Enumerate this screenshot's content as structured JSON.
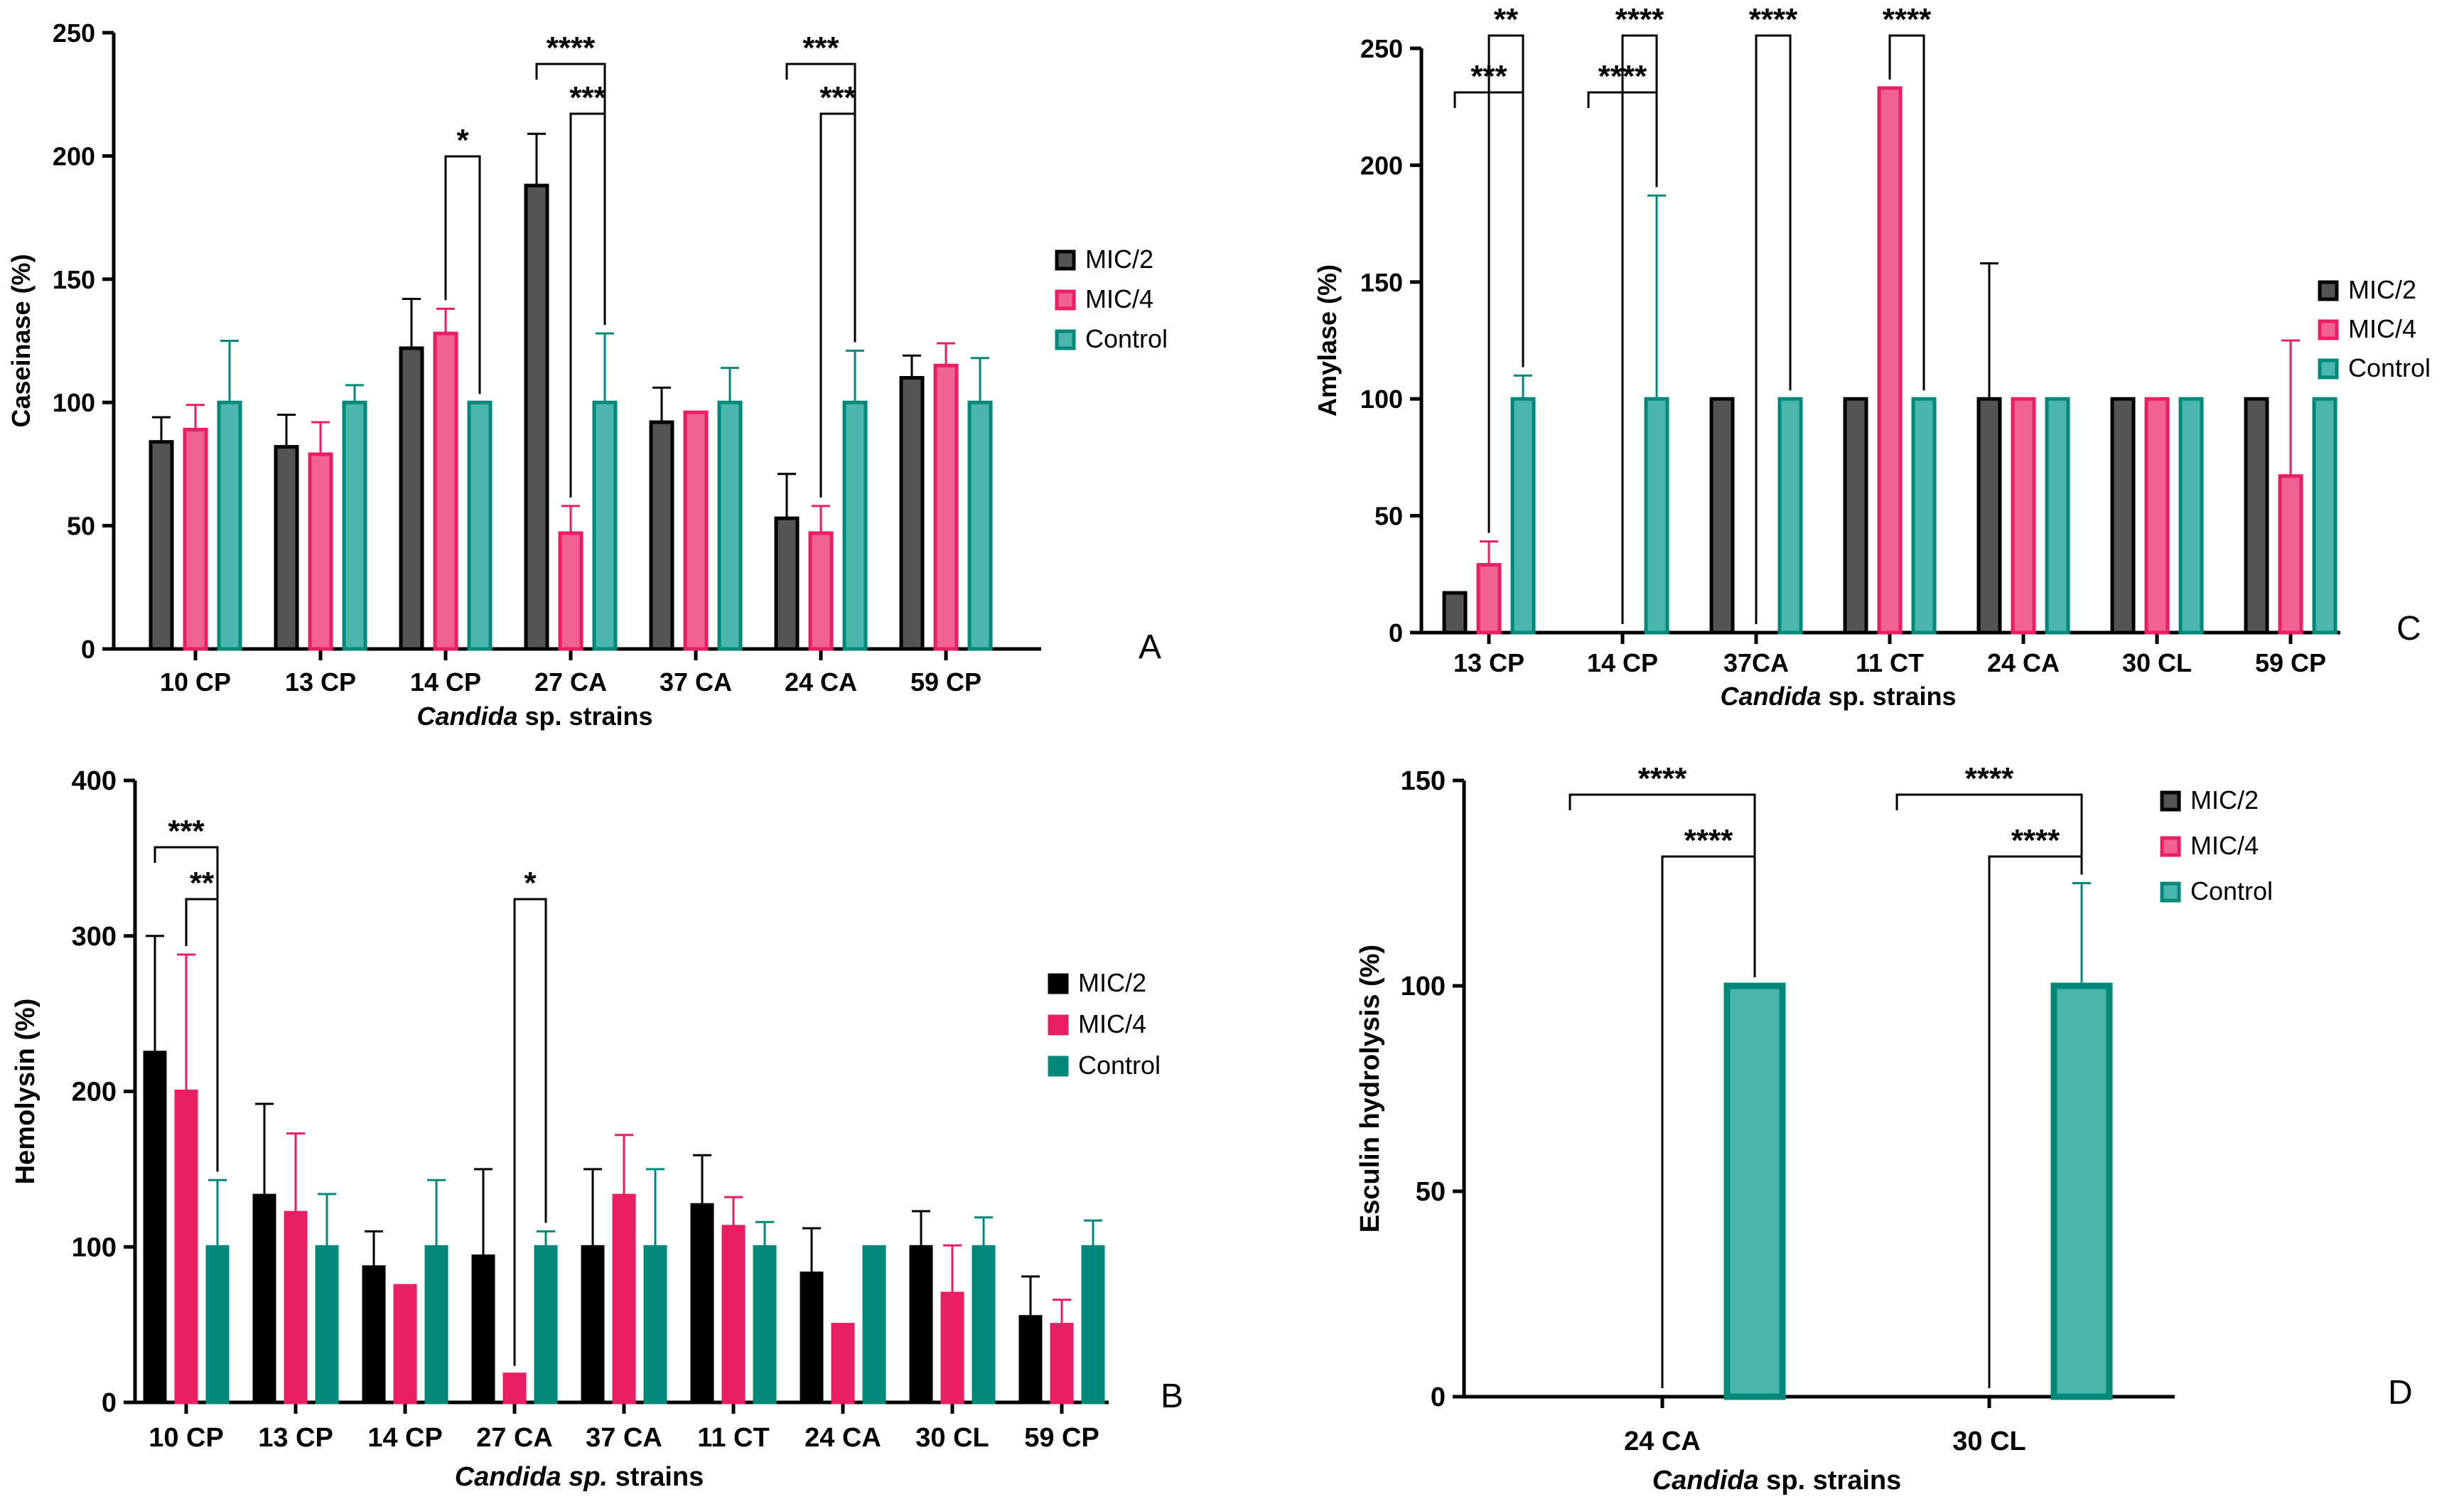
{
  "colors": {
    "mic2": "#545454",
    "mic2_dark": "#000000",
    "mic4": "#f06292",
    "mic4_dark": "#e91e63",
    "control": "#4db6ac",
    "control_dark": "#00897b",
    "axis": "#000000"
  },
  "chart_data": [
    {
      "id": "A",
      "panel_label": "A",
      "type": "bar",
      "xlabel_italic": "Candida",
      "xlabel_rest": " sp. strains",
      "ylabel": "Caseinase (%)",
      "ylim": [
        0,
        250
      ],
      "yticks": [
        0,
        50,
        100,
        150,
        200,
        250
      ],
      "categories": [
        "10 CP",
        "13 CP",
        "14 CP",
        "27 CA",
        "37 CA",
        "24 CA",
        "59 CP"
      ],
      "series": [
        {
          "name": "MIC/2",
          "values": [
            84,
            82,
            122,
            188,
            92,
            53,
            110
          ],
          "errors": [
            10,
            13,
            20,
            21,
            14,
            18,
            9
          ]
        },
        {
          "name": "MIC/4",
          "values": [
            89,
            79,
            128,
            47,
            96,
            47,
            115
          ],
          "errors": [
            10,
            13,
            10,
            11,
            0,
            11,
            9
          ]
        },
        {
          "name": "Control",
          "values": [
            100,
            100,
            100,
            100,
            100,
            100,
            100
          ],
          "errors": [
            25,
            7,
            0,
            28,
            14,
            21,
            18
          ]
        }
      ],
      "legend": [
        "MIC/2",
        "MIC/4",
        "Control"
      ],
      "legend_position": "right",
      "significance": [
        {
          "category": 2,
          "from": "MIC/4",
          "to": "Control",
          "label": "*",
          "level": 1
        },
        {
          "category": 3,
          "from": "MIC/2",
          "to": "Control",
          "label": "****",
          "level": 2
        },
        {
          "category": 3,
          "from": "MIC/4",
          "to": "Control",
          "label": "***",
          "level": 1
        },
        {
          "category": 5,
          "from": "MIC/2",
          "to": "Control",
          "label": "***",
          "level": 2
        },
        {
          "category": 5,
          "from": "MIC/4",
          "to": "Control",
          "label": "***",
          "level": 1
        }
      ]
    },
    {
      "id": "C",
      "panel_label": "C",
      "type": "bar",
      "xlabel_italic": "Candida",
      "xlabel_rest": " sp. strains",
      "ylabel": "Amylase (%)",
      "ylim": [
        0,
        250
      ],
      "yticks": [
        0,
        50,
        100,
        150,
        200,
        250
      ],
      "categories": [
        "13 CP",
        "14 CP",
        "37CA",
        "11 CT",
        "24 CA",
        "30 CL",
        "59 CP"
      ],
      "series": [
        {
          "name": "MIC/2",
          "values": [
            17,
            0,
            100,
            100,
            100,
            100,
            100
          ],
          "errors": [
            0,
            0,
            0,
            0,
            58,
            0,
            0
          ]
        },
        {
          "name": "MIC/4",
          "values": [
            29,
            0,
            0,
            233,
            100,
            100,
            67
          ],
          "errors": [
            10,
            0,
            0,
            0,
            0,
            0,
            58
          ]
        },
        {
          "name": "Control",
          "values": [
            100,
            100,
            100,
            100,
            100,
            100,
            100
          ],
          "errors": [
            10,
            87,
            0,
            0,
            0,
            0,
            0
          ]
        }
      ],
      "legend": [
        "MIC/2",
        "MIC/4",
        "Control"
      ],
      "legend_position": "right",
      "significance": [
        {
          "category": 0,
          "from": "MIC/2",
          "to": "Control",
          "label": "***",
          "level": 2
        },
        {
          "category": 0,
          "from": "MIC/4",
          "to": "Control",
          "label": "**",
          "level": 1
        },
        {
          "category": 1,
          "from": "MIC/2",
          "to": "Control",
          "label": "****",
          "level": 2
        },
        {
          "category": 1,
          "from": "MIC/4",
          "to": "Control",
          "label": "****",
          "level": 1
        },
        {
          "category": 2,
          "from": "MIC/4",
          "to": "Control",
          "label": "****",
          "level": 1
        },
        {
          "category": 3,
          "from": "MIC/4",
          "to": "Control",
          "label": "****",
          "level": 1
        }
      ]
    },
    {
      "id": "B",
      "panel_label": "B",
      "type": "bar",
      "xlabel_italic": "Candida sp.",
      "xlabel_rest": " strains",
      "ylabel": "Hemolysin (%)",
      "ylim": [
        0,
        400
      ],
      "yticks": [
        0,
        100,
        200,
        300,
        400
      ],
      "categories": [
        "10 CP",
        "13 CP",
        "14 CP",
        "27 CA",
        "37 CA",
        "11 CT",
        "24 CA",
        "30 CL",
        "59 CP"
      ],
      "series": [
        {
          "name": "MIC/2",
          "values": [
            225,
            133,
            87,
            94,
            100,
            127,
            83,
            100,
            55
          ],
          "errors": [
            75,
            59,
            23,
            56,
            50,
            32,
            29,
            23,
            26
          ]
        },
        {
          "name": "MIC/4",
          "values": [
            200,
            122,
            75,
            18,
            133,
            113,
            50,
            70,
            50
          ],
          "errors": [
            88,
            51,
            0,
            0,
            39,
            19,
            0,
            31,
            16
          ]
        },
        {
          "name": "Control",
          "values": [
            100,
            100,
            100,
            100,
            100,
            100,
            100,
            100,
            100
          ],
          "errors": [
            43,
            34,
            43,
            10,
            50,
            16,
            0,
            19,
            17
          ]
        }
      ],
      "legend": [
        "MIC/2",
        "MIC/4",
        "Control"
      ],
      "legend_position": "right",
      "significance": [
        {
          "category": 0,
          "from": "MIC/2",
          "to": "Control",
          "label": "***",
          "level": 2
        },
        {
          "category": 0,
          "from": "MIC/4",
          "to": "Control",
          "label": "**",
          "level": 1
        },
        {
          "category": 3,
          "from": "MIC/4",
          "to": "Control",
          "label": "*",
          "level": 1
        }
      ]
    },
    {
      "id": "D",
      "panel_label": "D",
      "type": "bar",
      "xlabel_italic": "Candida",
      "xlabel_rest": " sp. strains",
      "ylabel": "Esculin hydrolysis (%)",
      "ylim": [
        0,
        150
      ],
      "yticks": [
        0,
        50,
        100,
        150
      ],
      "categories": [
        "24 CA",
        "30 CL"
      ],
      "series": [
        {
          "name": "MIC/2",
          "values": [
            0,
            0
          ],
          "errors": [
            0,
            0
          ]
        },
        {
          "name": "MIC/4",
          "values": [
            0,
            0
          ],
          "errors": [
            0,
            0
          ]
        },
        {
          "name": "Control",
          "values": [
            100,
            100
          ],
          "errors": [
            0,
            25
          ]
        }
      ],
      "legend": [
        "MIC/2",
        "MIC/4",
        "Control"
      ],
      "legend_position": "right",
      "significance": [
        {
          "category": 0,
          "from": "MIC/2",
          "to": "Control",
          "label": "****",
          "level": 2
        },
        {
          "category": 0,
          "from": "MIC/4",
          "to": "Control",
          "label": "****",
          "level": 1
        },
        {
          "category": 1,
          "from": "MIC/2",
          "to": "Control",
          "label": "****",
          "level": 2
        },
        {
          "category": 1,
          "from": "MIC/4",
          "to": "Control",
          "label": "****",
          "level": 1
        }
      ]
    }
  ]
}
